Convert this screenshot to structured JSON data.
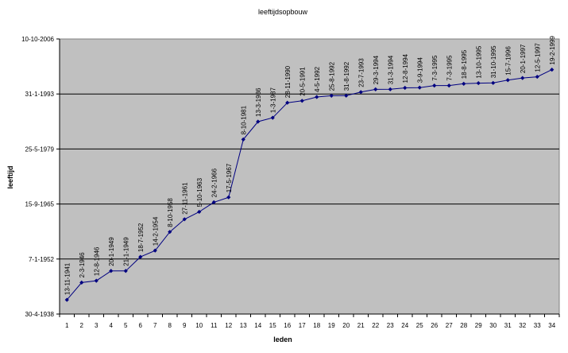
{
  "chart_data": {
    "type": "line",
    "title": "leeftijdsopbouw",
    "xlabel": "leden",
    "ylabel": "leeftijd",
    "y_ticks": [
      "30-4-1938",
      "7-1-1952",
      "15-9-1965",
      "25-5-1979",
      "31-1-1993",
      "10-10-2006"
    ],
    "ylim": [
      "1938-04-30",
      "2006-10-10"
    ],
    "x": [
      1,
      2,
      3,
      4,
      5,
      6,
      7,
      8,
      9,
      10,
      11,
      12,
      13,
      14,
      15,
      16,
      17,
      18,
      19,
      20,
      21,
      22,
      23,
      24,
      25,
      26,
      27,
      28,
      29,
      30,
      31,
      32,
      33,
      34
    ],
    "grid": "horizontal",
    "legend": "none",
    "series": [
      {
        "dates": [
          "1941-11-13",
          "1946-03-02",
          "1946-08-12",
          "1949-01-20",
          "1949-01-21",
          "1952-07-18",
          "1954-02-14",
          "1958-10-08",
          "1961-11-27",
          "1963-10-05",
          "1966-02-24",
          "1967-05-17",
          "1981-10-08",
          "1986-03-13",
          "1987-03-01",
          "1990-11-28",
          "1991-05-20",
          "1992-05-04",
          "1992-08-25",
          "1992-08-31",
          "1993-07-23",
          "1994-03-29",
          "1994-03-31",
          "1994-08-12",
          "1994-09-03",
          "1995-03-07",
          "1995-03-07",
          "1995-08-18",
          "1995-10-13",
          "1995-10-31",
          "1996-07-15",
          "1997-01-20",
          "1997-05-12",
          "1999-02-19"
        ],
        "labels": [
          "13-11-1941",
          "2-3-1946",
          "12-8-1946",
          "20-1-1949",
          "21-1-1949",
          "18-7-1952",
          "14-2-1954",
          "8-10-1958",
          "27-11-1961",
          "5-10-1963",
          "24-2-1966",
          "17-5-1967",
          "8-10-1981",
          "13-3-1986",
          "1-3-1987",
          "28-11-1990",
          "20-5-1991",
          "4-5-1992",
          "25-8-1992",
          "31-8-1992",
          "23-7-1993",
          "29-3-1994",
          "31-3-1994",
          "12-8-1994",
          "3-9-1994",
          "7-3-1995",
          "7-3-1995",
          "18-8-1995",
          "13-10-1995",
          "31-10-1995",
          "15-7-1996",
          "20-1-1997",
          "12-5-1997",
          "19-2-1999"
        ]
      }
    ],
    "colors": {
      "plot_bg": "#c0c0c0",
      "line": "#000080",
      "grid": "#000000"
    }
  }
}
